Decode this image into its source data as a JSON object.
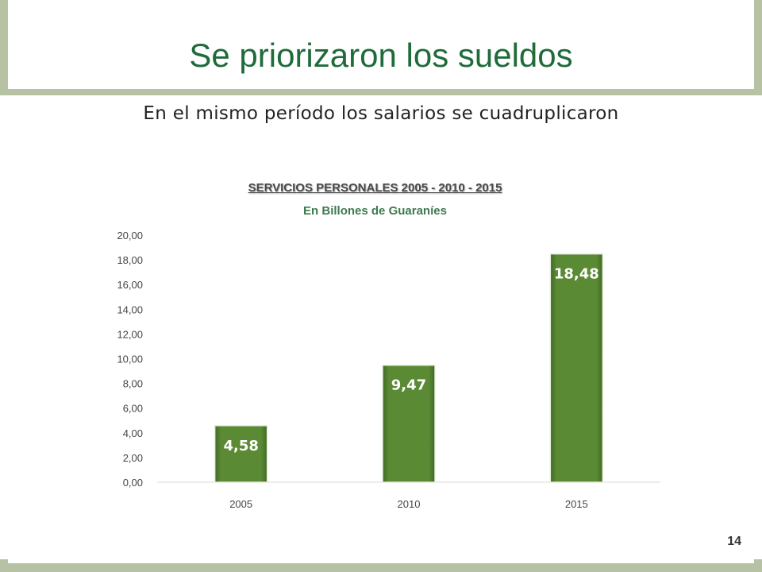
{
  "slide": {
    "title": "Se priorizaron los sueldos",
    "subtitle": "En el mismo período los salarios se cuadruplicaron",
    "page_number": "14"
  },
  "colors": {
    "bar": "#5b8a35",
    "band": "#b6c2a3",
    "title": "#1f6b3a"
  },
  "chart_data": {
    "type": "bar",
    "title": "SERVICIOS PERSONALES 2005 - 2010 - 2015",
    "subtitle": "En Billones de Guaraníes",
    "categories": [
      "2005",
      "2010",
      "2015"
    ],
    "values": [
      4.58,
      9.47,
      18.48
    ],
    "data_labels": [
      "4,58",
      "9,47",
      "18,48"
    ],
    "ylim": [
      0,
      20
    ],
    "yticks": [
      0,
      2,
      4,
      6,
      8,
      10,
      12,
      14,
      16,
      18,
      20
    ],
    "ytick_labels": [
      "0,00",
      "2,00",
      "4,00",
      "6,00",
      "8,00",
      "10,00",
      "12,00",
      "14,00",
      "16,00",
      "18,00",
      "20,00"
    ],
    "grid": false,
    "legend": "none"
  }
}
